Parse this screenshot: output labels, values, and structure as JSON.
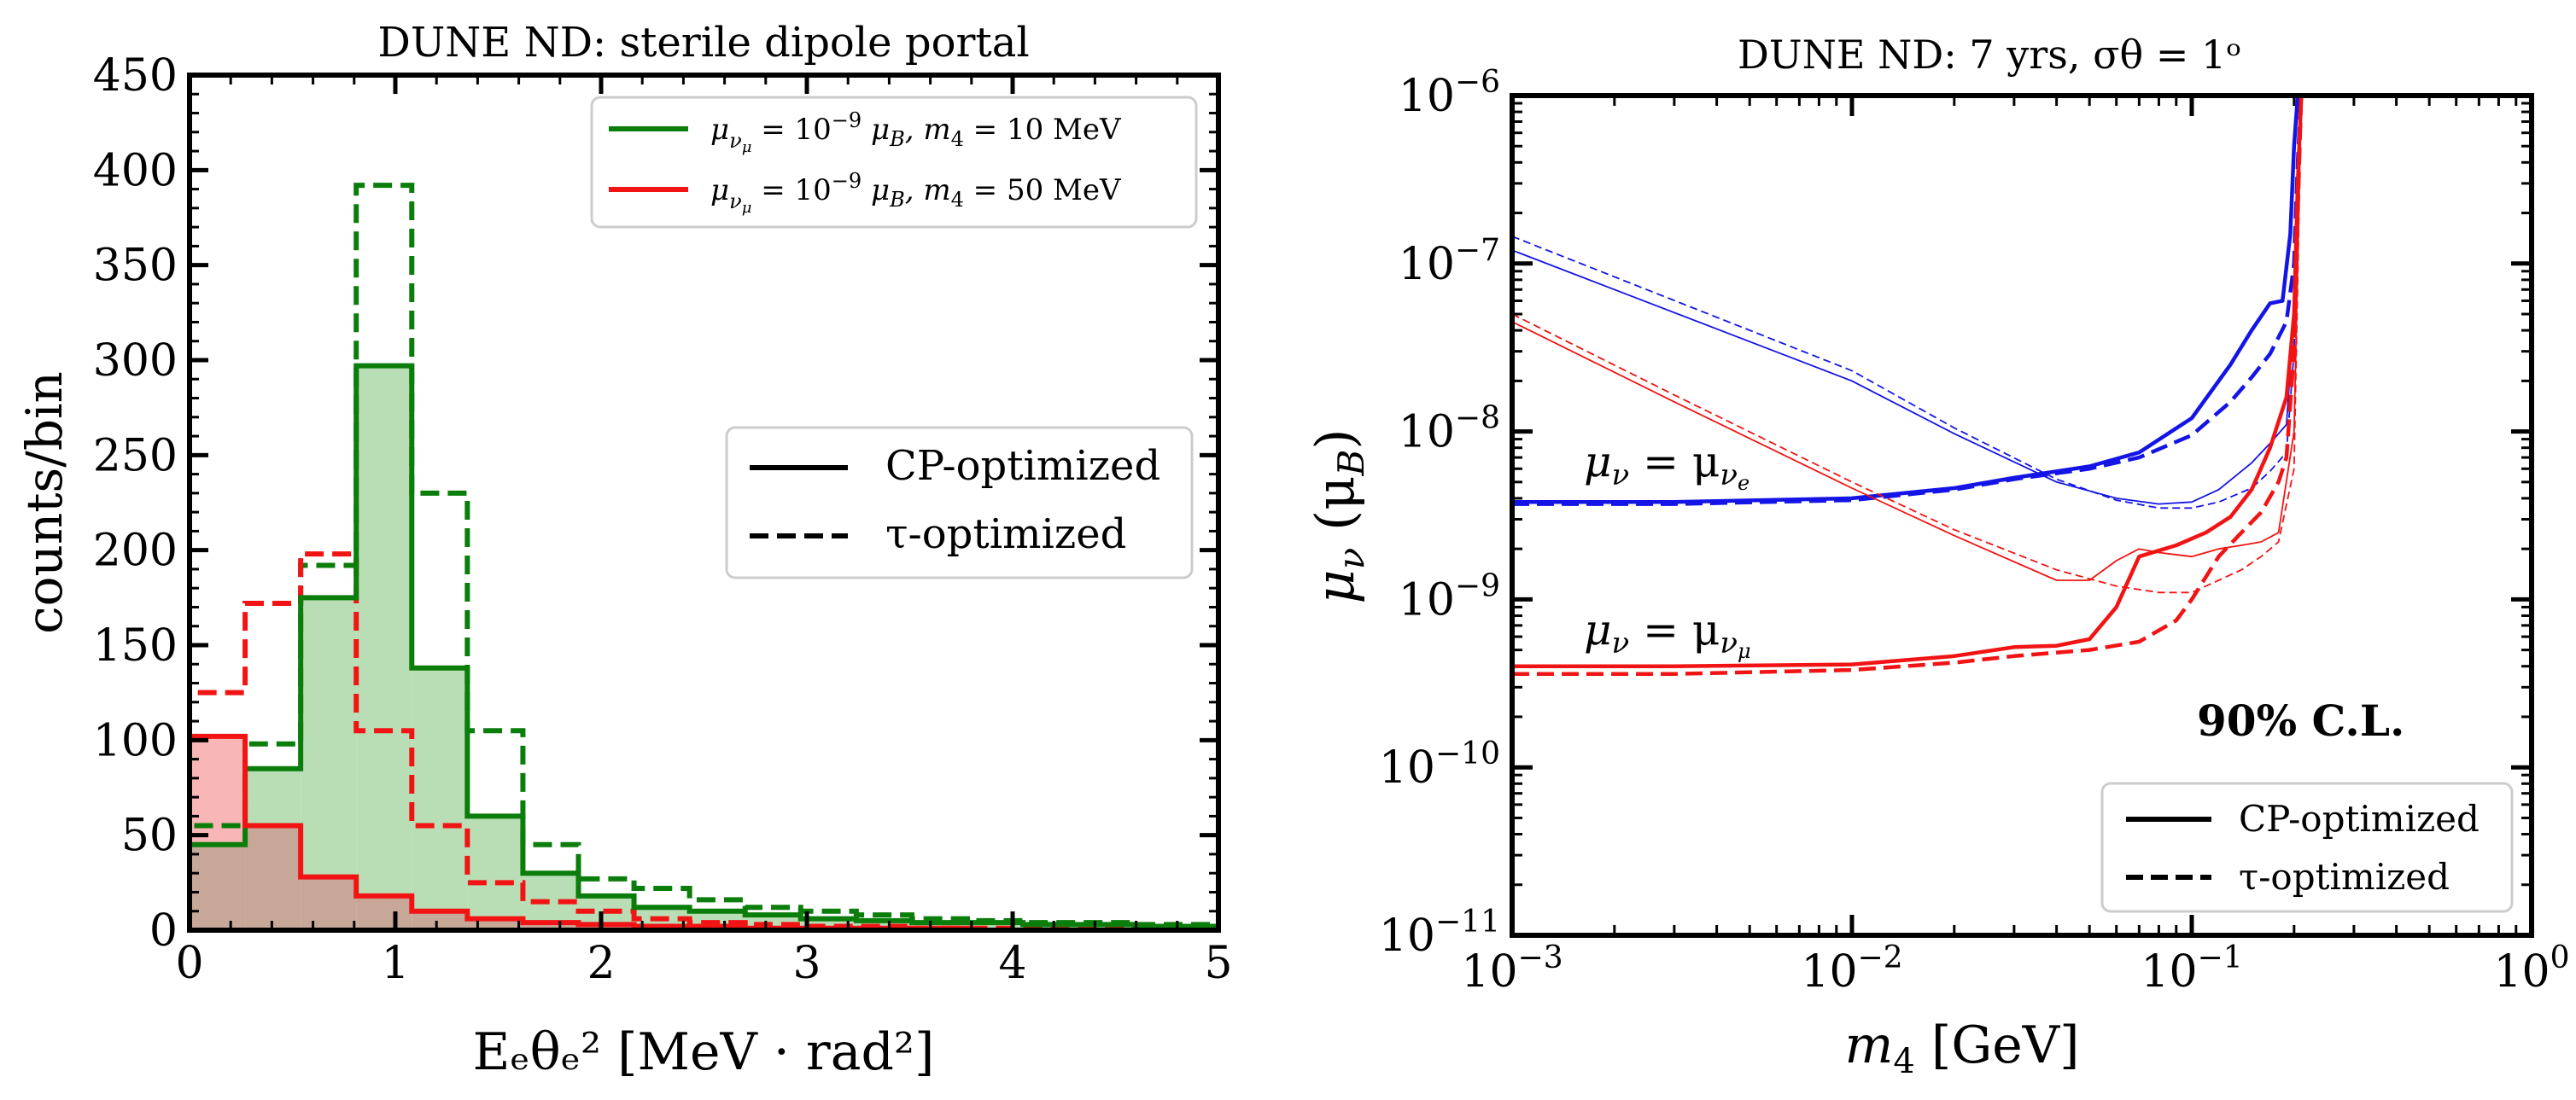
{
  "colors": {
    "green": "#0a7d0a",
    "green_fill": "#b9ddb5",
    "red": "#f21414",
    "red_fill": "#f8b6b6",
    "blue": "#1414e6",
    "overlap_fill": "#c7a898"
  },
  "chart_data": [
    {
      "type": "histogram",
      "title": "DUNE ND: sterile dipole portal",
      "xlabel": "Eₑθₑ² [MeV · rad²]",
      "ylabel": "counts/bin",
      "xlim": [
        0,
        5
      ],
      "ylim": [
        0,
        450
      ],
      "xticks": [
        "0",
        "1",
        "2",
        "3",
        "4",
        "5"
      ],
      "yticks": [
        "0",
        "50",
        "100",
        "150",
        "200",
        "250",
        "300",
        "350",
        "400",
        "450"
      ],
      "bin_edges": [
        0,
        0.27,
        0.54,
        0.81,
        1.08,
        1.35,
        1.62,
        1.89,
        2.16,
        2.43,
        2.7,
        2.97,
        3.24,
        3.51,
        3.78,
        4.05,
        4.32,
        4.59,
        4.86,
        5.0
      ],
      "series": [
        {
          "name": "μνμ = 10⁻⁹ μB,  m₄ = 10 MeV",
          "style": "CP-optimized",
          "color": "green",
          "filled": true,
          "values": [
            45,
            85,
            175,
            297,
            138,
            60,
            30,
            18,
            12,
            10,
            8,
            6,
            5,
            4,
            4,
            3,
            3,
            2,
            2
          ]
        },
        {
          "name": "μνμ = 10⁻⁹ μB,  m₄ = 10 MeV",
          "style": "τ-optimized",
          "color": "green",
          "filled": false,
          "values": [
            55,
            98,
            192,
            392,
            230,
            105,
            45,
            27,
            22,
            16,
            12,
            10,
            8,
            6,
            5,
            4,
            4,
            3,
            3
          ]
        },
        {
          "name": "μνμ = 10⁻⁹ μB,  m₄ = 50 MeV",
          "style": "CP-optimized",
          "color": "red",
          "filled": true,
          "values": [
            102,
            55,
            28,
            18,
            10,
            6,
            4,
            3,
            2,
            2,
            1,
            1,
            1,
            1,
            0,
            0,
            0,
            0,
            0
          ]
        },
        {
          "name": "μνμ = 10⁻⁹ μB,  m₄ = 50 MeV",
          "style": "τ-optimized",
          "color": "red",
          "filled": false,
          "values": [
            125,
            172,
            198,
            105,
            55,
            25,
            15,
            10,
            6,
            4,
            3,
            2,
            2,
            1,
            1,
            1,
            1,
            0,
            0
          ]
        }
      ],
      "legend_color": [
        {
          "label": "μνμ = 10⁻⁹ μB,  m₄ = 10 MeV",
          "color": "green"
        },
        {
          "label": "μνμ = 10⁻⁹ μB,  m₄ = 50 MeV",
          "color": "red"
        }
      ],
      "legend_style": [
        {
          "label": "CP-optimized",
          "dash": false
        },
        {
          "label": "τ-optimized",
          "dash": true
        }
      ]
    },
    {
      "type": "line",
      "title": "DUNE ND: 7 yrs, σθ = 1ᵒ",
      "xlabel": "m₄ [GeV]",
      "ylabel": "μν (μB)",
      "xscale": "log",
      "yscale": "log",
      "xlim": [
        0.001,
        1
      ],
      "ylim": [
        1e-11,
        1e-06
      ],
      "xticks": [
        {
          "value": 0.001,
          "base": "10",
          "exp": "−3"
        },
        {
          "value": 0.01,
          "base": "10",
          "exp": "−2"
        },
        {
          "value": 0.1,
          "base": "10",
          "exp": "−1"
        },
        {
          "value": 1,
          "base": "10",
          "exp": "0"
        }
      ],
      "yticks": [
        {
          "value": 1e-11,
          "base": "10",
          "exp": "−11"
        },
        {
          "value": 1e-10,
          "base": "10",
          "exp": "−10"
        },
        {
          "value": 1e-09,
          "base": "10",
          "exp": "−9"
        },
        {
          "value": 1e-08,
          "base": "10",
          "exp": "−8"
        },
        {
          "value": 1e-07,
          "base": "10",
          "exp": "−7"
        },
        {
          "value": 1e-06,
          "base": "10",
          "exp": "−6"
        }
      ],
      "series": [
        {
          "name": "μν = μνe, CP-optimized (thick)",
          "color": "blue",
          "dash": false,
          "width": 4.5,
          "x": [
            0.001,
            0.003,
            0.01,
            0.02,
            0.03,
            0.05,
            0.07,
            0.1,
            0.13,
            0.15,
            0.17,
            0.185,
            0.195,
            0.2,
            0.205,
            0.21
          ],
          "y": [
            3.8e-09,
            3.8e-09,
            4e-09,
            4.6e-09,
            5.3e-09,
            6.2e-09,
            7.5e-09,
            1.2e-08,
            2.5e-08,
            4e-08,
            5.8e-08,
            6e-08,
            1.5e-07,
            5e-07,
            1e-06,
            1e-06
          ]
        },
        {
          "name": "μν = μνe, τ-optimized (thick)",
          "color": "blue",
          "dash": true,
          "width": 4.5,
          "x": [
            0.001,
            0.003,
            0.01,
            0.02,
            0.03,
            0.05,
            0.07,
            0.1,
            0.13,
            0.15,
            0.17,
            0.19,
            0.2,
            0.205,
            0.21
          ],
          "y": [
            3.7e-09,
            3.7e-09,
            3.9e-09,
            4.5e-09,
            5.2e-09,
            6e-09,
            7e-09,
            9.5e-09,
            1.5e-08,
            2.1e-08,
            2.9e-08,
            4.5e-08,
            1e-07,
            4e-07,
            1e-06
          ]
        },
        {
          "name": "μν = μνe, CP-optimized (thin)",
          "color": "blue",
          "dash": false,
          "width": 1.8,
          "x": [
            0.001,
            0.01,
            0.02,
            0.04,
            0.06,
            0.08,
            0.1,
            0.12,
            0.15,
            0.17,
            0.19,
            0.2,
            0.205,
            0.21
          ],
          "y": [
            1.2e-07,
            2e-08,
            9.7e-09,
            5e-09,
            4e-09,
            3.7e-09,
            3.8e-09,
            4.5e-09,
            6.5e-09,
            8.5e-09,
            1.1e-08,
            5e-08,
            2e-07,
            1e-06
          ]
        },
        {
          "name": "μν = μνe, τ-optimized (thin)",
          "color": "blue",
          "dash": true,
          "width": 1.8,
          "x": [
            0.001,
            0.01,
            0.02,
            0.04,
            0.06,
            0.08,
            0.1,
            0.12,
            0.15,
            0.17,
            0.19,
            0.2,
            0.205,
            0.21
          ],
          "y": [
            1.45e-07,
            2.3e-08,
            1.05e-08,
            5.2e-09,
            3.9e-09,
            3.5e-09,
            3.5e-09,
            3.8e-09,
            4.6e-09,
            5.8e-09,
            7.5e-09,
            3e-08,
            1.5e-07,
            1e-06
          ]
        },
        {
          "name": "μν = μνμ, CP-optimized (thick)",
          "color": "red",
          "dash": false,
          "width": 4.5,
          "x": [
            0.001,
            0.003,
            0.01,
            0.02,
            0.03,
            0.04,
            0.05,
            0.06,
            0.07,
            0.09,
            0.11,
            0.13,
            0.15,
            0.17,
            0.19,
            0.2,
            0.205,
            0.21
          ],
          "y": [
            4e-10,
            4e-10,
            4.1e-10,
            4.6e-10,
            5.2e-10,
            5.3e-10,
            5.8e-10,
            9e-10,
            1.8e-09,
            2.1e-09,
            2.5e-09,
            3.1e-09,
            4.5e-09,
            8e-09,
            1.6e-08,
            5e-08,
            3e-07,
            1e-06
          ]
        },
        {
          "name": "μν = μνμ, τ-optimized (thick)",
          "color": "red",
          "dash": true,
          "width": 4.5,
          "x": [
            0.001,
            0.003,
            0.01,
            0.02,
            0.03,
            0.05,
            0.07,
            0.09,
            0.1,
            0.12,
            0.14,
            0.16,
            0.18,
            0.19,
            0.2,
            0.205,
            0.21
          ],
          "y": [
            3.6e-10,
            3.6e-10,
            3.8e-10,
            4.2e-10,
            4.6e-10,
            5e-10,
            5.6e-10,
            7.5e-10,
            1e-09,
            1.8e-09,
            2.5e-09,
            3.3e-09,
            5e-09,
            7e-09,
            3e-08,
            2e-07,
            1e-06
          ]
        },
        {
          "name": "μν = μνμ, CP-optimized (thin)",
          "color": "red",
          "dash": false,
          "width": 1.8,
          "x": [
            0.001,
            0.003,
            0.01,
            0.02,
            0.04,
            0.05,
            0.06,
            0.07,
            0.08,
            0.1,
            0.12,
            0.14,
            0.16,
            0.18,
            0.2,
            0.205,
            0.21
          ],
          "y": [
            4.5e-08,
            1.5e-08,
            4.6e-09,
            2.4e-09,
            1.3e-09,
            1.3e-09,
            1.7e-09,
            2e-09,
            1.9e-09,
            1.8e-09,
            2e-09,
            2.1e-09,
            2.2e-09,
            2.5e-09,
            1e-08,
            1e-07,
            1e-06
          ]
        },
        {
          "name": "μν = μνμ, τ-optimized (thin)",
          "color": "red",
          "dash": true,
          "width": 1.8,
          "x": [
            0.001,
            0.003,
            0.01,
            0.02,
            0.04,
            0.06,
            0.08,
            0.1,
            0.12,
            0.14,
            0.16,
            0.18,
            0.2,
            0.205,
            0.21
          ],
          "y": [
            5e-08,
            1.65e-08,
            5e-09,
            2.6e-09,
            1.5e-09,
            1.2e-09,
            1.1e-09,
            1.1e-09,
            1.3e-09,
            1.5e-09,
            1.8e-09,
            2.2e-09,
            6e-09,
            8e-08,
            1e-06
          ]
        }
      ],
      "annotations": [
        {
          "text": "μν = μνe",
          "color": "blue"
        },
        {
          "text": "μν = μνμ",
          "color": "red"
        },
        {
          "text": "90% C.L.",
          "color": "black"
        }
      ],
      "legend_style": [
        {
          "label": "CP-optimized",
          "dash": false
        },
        {
          "label": "τ-optimized",
          "dash": true
        }
      ]
    }
  ]
}
